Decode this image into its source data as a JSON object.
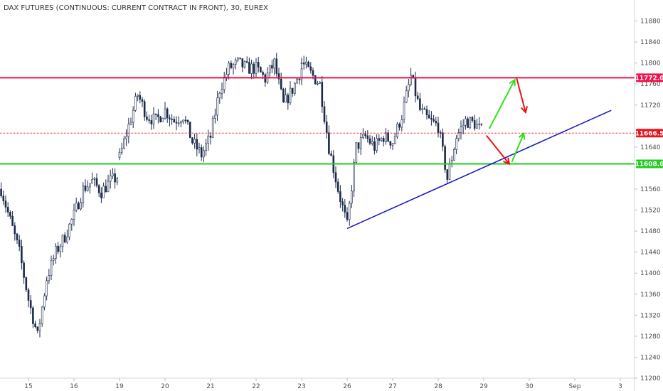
{
  "title": "DAX FUTURES (CONTINUOUS: CURRENT CONTRACT IN FRONT), 30, EUREX",
  "colors": {
    "up_body": "#ffffff",
    "candle": "#1b2a4a",
    "resistance": "#f0104a",
    "support": "#22cc22",
    "trend": "#1515c8",
    "current": "#e8141e",
    "up_arrow": "#33dd22",
    "down_arrow": "#ee1111"
  },
  "chart_data": {
    "type": "candlestick",
    "ylim": [
      11200,
      11920
    ],
    "y_ticks": [
      11200,
      11240,
      11280,
      11320,
      11360,
      11400,
      11440,
      11480,
      11520,
      11560,
      11640,
      11720,
      11760,
      11800,
      11840,
      11880
    ],
    "x_ticks": [
      {
        "label": "15",
        "x": 0
      },
      {
        "label": "16",
        "x": 1
      },
      {
        "label": "19",
        "x": 2
      },
      {
        "label": "20",
        "x": 3
      },
      {
        "label": "21",
        "x": 4
      },
      {
        "label": "22",
        "x": 5
      },
      {
        "label": "23",
        "x": 6
      },
      {
        "label": "26",
        "x": 7
      },
      {
        "label": "27",
        "x": 8
      },
      {
        "label": "28",
        "x": 9
      },
      {
        "label": "29",
        "x": 10
      },
      {
        "label": "30",
        "x": 11
      },
      {
        "label": "Sep",
        "x": 12
      },
      {
        "label": "3",
        "x": 13
      }
    ],
    "series": [
      {
        "x": [
          -0.6,
          -0.4,
          -0.2,
          0.0,
          0.2,
          0.4,
          0.6,
          0.8,
          1.0,
          1.2,
          1.4,
          1.6,
          1.8,
          2.0
        ],
        "y": [
          11560,
          11500,
          11440,
          11350,
          11280,
          11390,
          11440,
          11470,
          11510,
          11560,
          11575,
          11555,
          11575,
          11585
        ]
      },
      {
        "x": [
          2.0,
          2.2,
          2.4,
          2.6,
          2.8,
          3.0,
          3.2,
          3.4,
          3.6,
          3.8,
          4.0,
          4.2,
          4.4,
          4.6,
          4.8,
          5.0,
          5.2,
          5.4,
          5.6,
          5.8,
          6.0
        ],
        "y": [
          11620,
          11680,
          11740,
          11700,
          11690,
          11710,
          11690,
          11700,
          11650,
          11625,
          11660,
          11750,
          11790,
          11800,
          11790,
          11790,
          11770,
          11800,
          11720,
          11750,
          11790
        ]
      },
      {
        "x": [
          6.0,
          6.2,
          6.4,
          6.6,
          6.8,
          7.0,
          7.2,
          7.4,
          7.6,
          7.8,
          8.0,
          8.2,
          8.4,
          8.6,
          8.8,
          9.0,
          9.2,
          9.4,
          9.6,
          9.8,
          10.0
        ],
        "y": [
          11800,
          11780,
          11760,
          11640,
          11560,
          11490,
          11640,
          11660,
          11640,
          11660,
          11650,
          11700,
          11775,
          11710,
          11690,
          11680,
          11580,
          11660,
          11690,
          11685,
          11666.5
        ]
      }
    ],
    "levels": [
      {
        "name": "resistance",
        "value": 11772.0,
        "label": "11772.0"
      },
      {
        "name": "current",
        "value": 11666.5,
        "label": "11666.5"
      },
      {
        "name": "support",
        "value": 11608.0,
        "label": "11608.0"
      }
    ],
    "trendline": {
      "from": [
        7.0,
        11485
      ],
      "to": [
        12.8,
        11710
      ]
    }
  }
}
